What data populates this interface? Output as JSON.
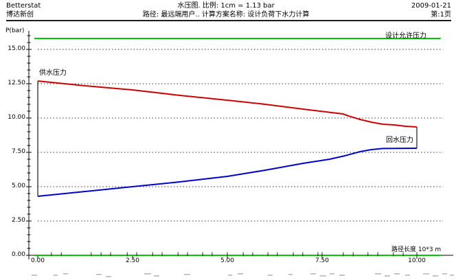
{
  "header": {
    "app_name": "Betterstat",
    "company": "博达新创",
    "title_line": "水压图. 比例: 1cm = 1.13 bar",
    "path_line": "路径: 最远端用户.. 计算方案名称: 设计负荷下水力计算",
    "date": "2009-01-21",
    "page": "第:1页"
  },
  "chart_data": {
    "type": "line",
    "title": "水压图",
    "xlabel": "路径长度 10*3 m",
    "ylabel": "P(bar)",
    "xlim": [
      0,
      10.65
    ],
    "ylim": [
      0,
      16.6
    ],
    "x_ticks": [
      0,
      2.5,
      5,
      7.5,
      10
    ],
    "y_ticks": [
      0,
      2.5,
      5,
      7.5,
      10,
      12.5,
      15
    ],
    "grid": "horizontal-dashed",
    "legend_position": "inline-labels",
    "series": [
      {
        "name": "设计允许压力",
        "color": "#00c800",
        "points": [
          [
            -0.09,
            15.8
          ],
          [
            10.63,
            15.8
          ]
        ]
      },
      {
        "name": "供水压力",
        "color": "#cc0000",
        "points": [
          [
            0,
            12.7
          ],
          [
            1.25,
            12.35
          ],
          [
            2.5,
            12.05
          ],
          [
            3.75,
            11.65
          ],
          [
            5,
            11.3
          ],
          [
            6,
            11.0
          ],
          [
            7,
            10.65
          ],
          [
            7.6,
            10.45
          ],
          [
            8.05,
            10.3
          ],
          [
            8.2,
            10.15
          ],
          [
            8.5,
            9.9
          ],
          [
            8.8,
            9.7
          ],
          [
            9.1,
            9.55
          ],
          [
            9.4,
            9.5
          ],
          [
            9.7,
            9.4
          ],
          [
            10,
            9.35
          ]
        ]
      },
      {
        "name": "回水压力",
        "color": "#0000cc",
        "points": [
          [
            0,
            4.3
          ],
          [
            1.25,
            4.65
          ],
          [
            2.5,
            5.0
          ],
          [
            3.75,
            5.35
          ],
          [
            5,
            5.75
          ],
          [
            6,
            6.2
          ],
          [
            7,
            6.7
          ],
          [
            7.7,
            7.0
          ],
          [
            8.1,
            7.25
          ],
          [
            8.5,
            7.55
          ],
          [
            8.8,
            7.7
          ],
          [
            9.1,
            7.78
          ],
          [
            10,
            7.8
          ]
        ]
      },
      {
        "name": "",
        "role": "zero-baseline",
        "color": "#00c800",
        "points": [
          [
            -0.09,
            0
          ],
          [
            10.63,
            0
          ]
        ]
      }
    ],
    "connectors": [
      {
        "x": 0,
        "y1": 4.3,
        "y2": 12.7
      },
      {
        "x": 10,
        "y1": 7.8,
        "y2": 9.35
      }
    ],
    "node_ticks": [
      0.36,
      0.62,
      1.41,
      1.67,
      1.92,
      2.36,
      2.61,
      3.03,
      3.28,
      3.7,
      3.95,
      4.35,
      4.6,
      5.0,
      5.42,
      5.67,
      6.07,
      6.32,
      6.74,
      6.99,
      7.39,
      7.5,
      8.06,
      8.32,
      8.71,
      8.97,
      9.38,
      9.64,
      10.0
    ]
  }
}
